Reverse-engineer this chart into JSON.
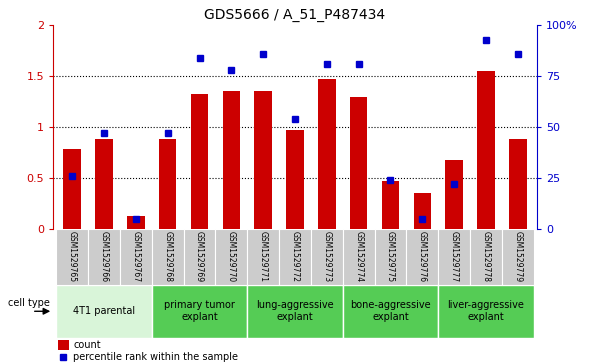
{
  "title": "GDS5666 / A_51_P487434",
  "samples": [
    "GSM1529765",
    "GSM1529766",
    "GSM1529767",
    "GSM1529768",
    "GSM1529769",
    "GSM1529770",
    "GSM1529771",
    "GSM1529772",
    "GSM1529773",
    "GSM1529774",
    "GSM1529775",
    "GSM1529776",
    "GSM1529777",
    "GSM1529778",
    "GSM1529779"
  ],
  "counts": [
    0.78,
    0.88,
    0.12,
    0.88,
    1.33,
    1.35,
    1.35,
    0.97,
    1.47,
    1.3,
    0.47,
    0.35,
    0.68,
    1.55,
    0.88
  ],
  "percentile_ranks": [
    26,
    47,
    5,
    47,
    84,
    78,
    86,
    54,
    81,
    81,
    24,
    5,
    22,
    93,
    86
  ],
  "bar_color": "#cc0000",
  "dot_color": "#0000cc",
  "ylim_left": [
    0,
    2
  ],
  "ylim_right": [
    0,
    100
  ],
  "yticks_left": [
    0,
    0.5,
    1.0,
    1.5,
    2.0
  ],
  "ytick_labels_left": [
    "0",
    "0.5",
    "1",
    "1.5",
    "2"
  ],
  "yticks_right": [
    0,
    25,
    50,
    75,
    100
  ],
  "ytick_labels_right": [
    "0",
    "25",
    "50",
    "75",
    "100%"
  ],
  "groups": [
    {
      "label": "4T1 parental",
      "indices": [
        0,
        1,
        2
      ],
      "color": "#d9f5d9"
    },
    {
      "label": "primary tumor\nexplant",
      "indices": [
        3,
        4,
        5
      ],
      "color": "#55cc55"
    },
    {
      "label": "lung-aggressive\nexplant",
      "indices": [
        6,
        7,
        8
      ],
      "color": "#55cc55"
    },
    {
      "label": "bone-aggressive\nexplant",
      "indices": [
        9,
        10,
        11
      ],
      "color": "#55cc55"
    },
    {
      "label": "liver-aggressive\nexplant",
      "indices": [
        12,
        13,
        14
      ],
      "color": "#55cc55"
    }
  ],
  "legend_count_label": "count",
  "legend_pct_label": "percentile rank within the sample",
  "cell_type_label": "cell type",
  "background_color": "#ffffff"
}
